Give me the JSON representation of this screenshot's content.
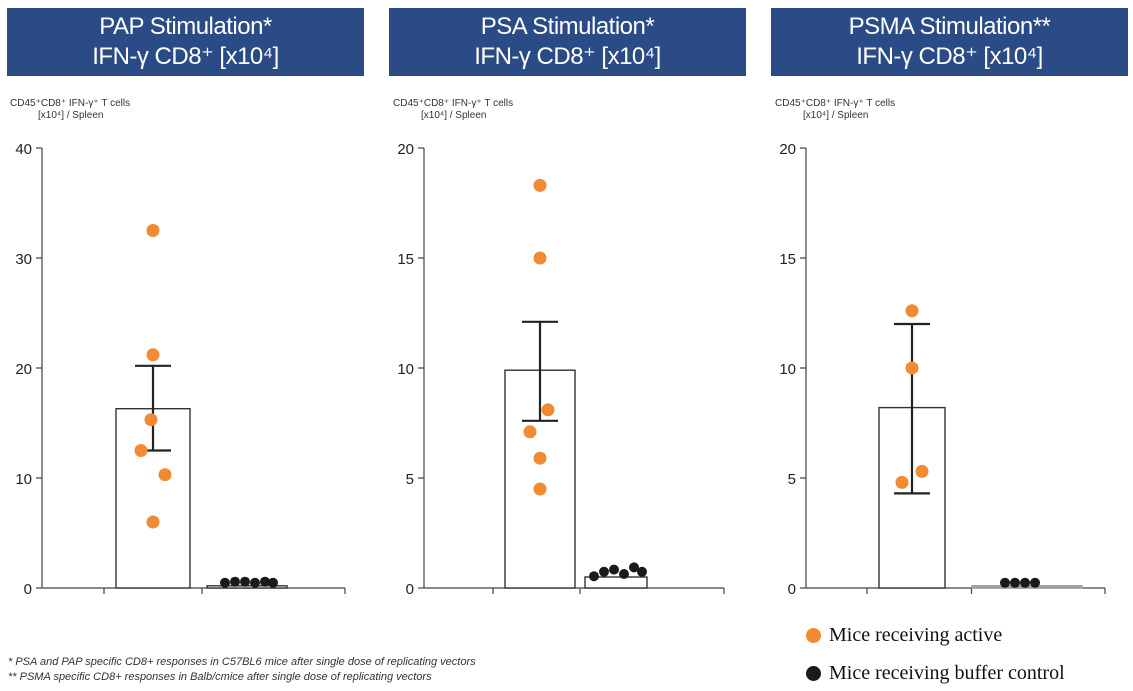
{
  "panels": [
    {
      "title_line1": "PAP Stimulation*",
      "title_line2": "IFN-γ CD8⁺ [x10⁴]"
    },
    {
      "title_line1": "PSA Stimulation*",
      "title_line2": "IFN-γ CD8⁺ [x10⁴]"
    },
    {
      "title_line1": "PSMA Stimulation**",
      "title_line2": "IFN-γ CD8⁺ [x10⁴]"
    }
  ],
  "legend": {
    "active_label": "Mice receiving active",
    "buffer_label": "Mice receiving buffer control"
  },
  "footnotes": [
    "* PSA and PAP specific CD8+ responses in C57BL6 mice after single dose of  replicating vectors",
    "** PSMA specific CD8+ responses in Balb/cmice after single dose of  replicating vectors"
  ],
  "colors": {
    "header_bg": "#2a4b86",
    "active": "#f08a33",
    "buffer": "#1a1a1a"
  },
  "chart_data": [
    {
      "type": "bar",
      "ylabel_line1": "CD45⁺CD8⁺ IFN-γ⁺ T cells",
      "ylabel_line2": "[x10⁴] / Spleen",
      "ylim": [
        0,
        40
      ],
      "yticks": [
        0,
        10,
        20,
        30,
        40
      ],
      "bars": [
        {
          "group": "active",
          "mean": 16.3,
          "err_low": 12.5,
          "err_high": 20.2,
          "points": [
            32.5,
            21.2,
            15.3,
            12.5,
            10.3,
            6.0
          ]
        },
        {
          "group": "buffer",
          "mean": 0.2,
          "points": [
            0.2,
            0.3,
            0.3,
            0.2,
            0.3,
            0.2
          ]
        }
      ]
    },
    {
      "type": "bar",
      "ylabel_line1": "CD45⁺CD8⁺ IFN-γ⁺ T cells",
      "ylabel_line2": "[x10⁴] / Spleen",
      "ylim": [
        0,
        20
      ],
      "yticks": [
        0,
        5,
        10,
        15,
        20
      ],
      "bars": [
        {
          "group": "active",
          "mean": 9.9,
          "err_low": 7.6,
          "err_high": 12.1,
          "points": [
            18.3,
            15.0,
            8.1,
            7.1,
            5.9,
            4.5
          ]
        },
        {
          "group": "buffer",
          "mean": 0.5,
          "points": [
            0.4,
            0.6,
            0.7,
            0.5,
            0.8,
            0.6
          ]
        }
      ]
    },
    {
      "type": "bar",
      "ylabel_line1": "CD45⁺CD8⁺ IFN-γ⁺ T cells",
      "ylabel_line2": "[x10⁴] / Spleen",
      "ylim": [
        0,
        20
      ],
      "yticks": [
        0,
        5,
        10,
        15,
        20
      ],
      "bars": [
        {
          "group": "active",
          "mean": 8.2,
          "err_low": 4.3,
          "err_high": 12.0,
          "points": [
            12.6,
            10.0,
            5.3,
            4.8
          ]
        },
        {
          "group": "buffer",
          "mean": 0.1,
          "points": [
            0.1,
            0.1,
            0.1,
            0.1
          ]
        }
      ]
    }
  ]
}
